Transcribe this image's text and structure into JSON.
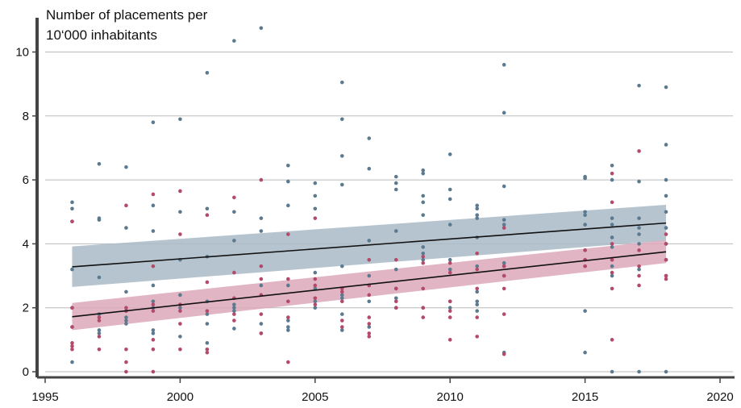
{
  "chart_data": {
    "type": "scatter",
    "title": "",
    "ylabel_lines": [
      "Number of placements per",
      "10‘000 inhabitants"
    ],
    "xlabel": "",
    "xlim": [
      1995,
      2020
    ],
    "ylim": [
      0,
      10.8
    ],
    "x_ticks": [
      1995,
      2000,
      2005,
      2010,
      2015,
      2020
    ],
    "y_ticks": [
      0,
      2,
      4,
      6,
      8,
      10
    ],
    "grid": "horizontal",
    "colors": {
      "blue_points": "#5b7a8f",
      "red_points": "#b44a6a",
      "blue_band": "#a9bac8",
      "red_band": "#dca8b8",
      "fit_line": "#111111",
      "grid": "#bbbbbb",
      "axis": "#444444"
    },
    "series": [
      {
        "color": "#5b7a8f",
        "points": [
          [
            1996,
            5.3
          ],
          [
            1996,
            5.1
          ],
          [
            1996,
            4.7
          ],
          [
            1996,
            3.2
          ],
          [
            1996,
            2.0
          ],
          [
            1996,
            1.4
          ],
          [
            1996,
            0.3
          ],
          [
            1997,
            6.5
          ],
          [
            1997,
            4.8
          ],
          [
            1997,
            4.75
          ],
          [
            1997,
            2.95
          ],
          [
            1997,
            1.8
          ],
          [
            1997,
            1.3
          ],
          [
            1997,
            1.2
          ],
          [
            1998,
            6.4
          ],
          [
            1998,
            4.5
          ],
          [
            1998,
            2.5
          ],
          [
            1998,
            1.9
          ],
          [
            1998,
            1.7
          ],
          [
            1998,
            1.6
          ],
          [
            1998,
            1.5
          ],
          [
            1999,
            7.8
          ],
          [
            1999,
            5.2
          ],
          [
            1999,
            4.4
          ],
          [
            1999,
            2.7
          ],
          [
            1999,
            2.2
          ],
          [
            1999,
            2.0
          ],
          [
            1999,
            1.3
          ],
          [
            1999,
            1.2
          ],
          [
            2000,
            7.9
          ],
          [
            2000,
            5.0
          ],
          [
            2000,
            3.5
          ],
          [
            2000,
            2.4
          ],
          [
            2000,
            2.0
          ],
          [
            2000,
            1.1
          ],
          [
            2001,
            9.35
          ],
          [
            2001,
            5.1
          ],
          [
            2001,
            3.6
          ],
          [
            2001,
            2.2
          ],
          [
            2001,
            1.8
          ],
          [
            2001,
            1.5
          ],
          [
            2001,
            0.9
          ],
          [
            2002,
            10.35
          ],
          [
            2002,
            5.0
          ],
          [
            2002,
            4.1
          ],
          [
            2002,
            2.1
          ],
          [
            2002,
            2.0
          ],
          [
            2002,
            1.9
          ],
          [
            2002,
            1.35
          ],
          [
            2003,
            10.75
          ],
          [
            2003,
            4.8
          ],
          [
            2003,
            4.4
          ],
          [
            2003,
            2.7
          ],
          [
            2003,
            1.5
          ],
          [
            2003,
            1.2
          ],
          [
            2004,
            6.45
          ],
          [
            2004,
            5.95
          ],
          [
            2004,
            5.2
          ],
          [
            2004,
            2.7
          ],
          [
            2004,
            1.6
          ],
          [
            2004,
            1.4
          ],
          [
            2004,
            1.3
          ],
          [
            2005,
            5.9
          ],
          [
            2005,
            5.5
          ],
          [
            2005,
            5.1
          ],
          [
            2005,
            3.1
          ],
          [
            2005,
            2.6
          ],
          [
            2005,
            2.2
          ],
          [
            2005,
            2.0
          ],
          [
            2006,
            9.05
          ],
          [
            2006,
            7.9
          ],
          [
            2006,
            6.75
          ],
          [
            2006,
            5.85
          ],
          [
            2006,
            3.3
          ],
          [
            2006,
            2.4
          ],
          [
            2006,
            2.3
          ],
          [
            2006,
            1.8
          ],
          [
            2006,
            1.3
          ],
          [
            2007,
            7.3
          ],
          [
            2007,
            6.35
          ],
          [
            2007,
            4.1
          ],
          [
            2007,
            3.0
          ],
          [
            2007,
            2.7
          ],
          [
            2007,
            2.2
          ],
          [
            2007,
            1.4
          ],
          [
            2008,
            6.1
          ],
          [
            2008,
            5.9
          ],
          [
            2008,
            5.7
          ],
          [
            2008,
            4.4
          ],
          [
            2008,
            3.2
          ],
          [
            2008,
            2.6
          ],
          [
            2008,
            2.3
          ],
          [
            2008,
            2.0
          ],
          [
            2009,
            6.3
          ],
          [
            2009,
            6.2
          ],
          [
            2009,
            5.5
          ],
          [
            2009,
            5.3
          ],
          [
            2009,
            4.9
          ],
          [
            2009,
            3.9
          ],
          [
            2009,
            3.7
          ],
          [
            2009,
            3.5
          ],
          [
            2009,
            2.0
          ],
          [
            2010,
            6.8
          ],
          [
            2010,
            5.7
          ],
          [
            2010,
            5.4
          ],
          [
            2010,
            4.6
          ],
          [
            2010,
            3.5
          ],
          [
            2010,
            3.2
          ],
          [
            2010,
            2.2
          ],
          [
            2010,
            2.0
          ],
          [
            2011,
            5.2
          ],
          [
            2011,
            5.1
          ],
          [
            2011,
            4.9
          ],
          [
            2011,
            4.8
          ],
          [
            2011,
            4.2
          ],
          [
            2011,
            3.3
          ],
          [
            2011,
            2.5
          ],
          [
            2011,
            2.2
          ],
          [
            2011,
            2.1
          ],
          [
            2011,
            1.9
          ],
          [
            2012,
            9.6
          ],
          [
            2012,
            8.1
          ],
          [
            2012,
            5.8
          ],
          [
            2012,
            4.75
          ],
          [
            2012,
            4.6
          ],
          [
            2012,
            3.4
          ],
          [
            2012,
            3.3
          ],
          [
            2012,
            3.0
          ],
          [
            2012,
            0.6
          ],
          [
            2015,
            6.1
          ],
          [
            2015,
            6.05
          ],
          [
            2015,
            5.0
          ],
          [
            2015,
            4.9
          ],
          [
            2015,
            4.6
          ],
          [
            2015,
            3.8
          ],
          [
            2015,
            3.5
          ],
          [
            2015,
            3.3
          ],
          [
            2015,
            1.9
          ],
          [
            2015,
            0.6
          ],
          [
            2016,
            6.45
          ],
          [
            2016,
            6.0
          ],
          [
            2016,
            4.8
          ],
          [
            2016,
            4.6
          ],
          [
            2016,
            4.2
          ],
          [
            2016,
            3.9
          ],
          [
            2016,
            3.3
          ],
          [
            2016,
            3.0
          ],
          [
            2016,
            0.0
          ],
          [
            2017,
            8.95
          ],
          [
            2017,
            5.95
          ],
          [
            2017,
            4.8
          ],
          [
            2017,
            4.5
          ],
          [
            2017,
            4.3
          ],
          [
            2017,
            4.0
          ],
          [
            2017,
            3.2
          ],
          [
            2017,
            0.0
          ],
          [
            2018,
            8.9
          ],
          [
            2018,
            7.1
          ],
          [
            2018,
            6.0
          ],
          [
            2018,
            5.5
          ],
          [
            2018,
            5.0
          ],
          [
            2018,
            4.5
          ],
          [
            2018,
            4.0
          ],
          [
            2018,
            3.5
          ],
          [
            2018,
            3.0
          ],
          [
            2018,
            0.0
          ]
        ]
      },
      {
        "color": "#b44a6a",
        "points": [
          [
            1996,
            4.7
          ],
          [
            1996,
            2.0
          ],
          [
            1996,
            1.4
          ],
          [
            1996,
            0.9
          ],
          [
            1996,
            0.8
          ],
          [
            1996,
            0.7
          ],
          [
            1997,
            1.7
          ],
          [
            1997,
            1.6
          ],
          [
            1997,
            1.1
          ],
          [
            1997,
            0.7
          ],
          [
            1998,
            5.2
          ],
          [
            1998,
            2.0
          ],
          [
            1998,
            1.9
          ],
          [
            1998,
            0.7
          ],
          [
            1998,
            0.3
          ],
          [
            1998,
            0.0
          ],
          [
            1999,
            5.55
          ],
          [
            1999,
            3.3
          ],
          [
            1999,
            2.1
          ],
          [
            1999,
            1.9
          ],
          [
            1999,
            1.0
          ],
          [
            1999,
            0.7
          ],
          [
            1999,
            0.0
          ],
          [
            2000,
            5.65
          ],
          [
            2000,
            4.3
          ],
          [
            2000,
            2.1
          ],
          [
            2000,
            1.9
          ],
          [
            2000,
            1.5
          ],
          [
            2000,
            0.7
          ],
          [
            2001,
            4.9
          ],
          [
            2001,
            2.8
          ],
          [
            2001,
            1.9
          ],
          [
            2001,
            0.7
          ],
          [
            2001,
            0.6
          ],
          [
            2002,
            5.45
          ],
          [
            2002,
            3.1
          ],
          [
            2002,
            2.3
          ],
          [
            2002,
            1.8
          ],
          [
            2002,
            1.6
          ],
          [
            2003,
            6.0
          ],
          [
            2003,
            3.3
          ],
          [
            2003,
            2.9
          ],
          [
            2003,
            2.4
          ],
          [
            2003,
            1.8
          ],
          [
            2003,
            1.2
          ],
          [
            2004,
            4.3
          ],
          [
            2004,
            2.9
          ],
          [
            2004,
            2.2
          ],
          [
            2004,
            1.7
          ],
          [
            2004,
            0.3
          ],
          [
            2005,
            4.8
          ],
          [
            2005,
            2.9
          ],
          [
            2005,
            2.7
          ],
          [
            2005,
            2.3
          ],
          [
            2005,
            2.1
          ],
          [
            2006,
            2.6
          ],
          [
            2006,
            2.5
          ],
          [
            2006,
            2.2
          ],
          [
            2006,
            1.6
          ],
          [
            2006,
            1.4
          ],
          [
            2007,
            3.5
          ],
          [
            2007,
            2.7
          ],
          [
            2007,
            2.4
          ],
          [
            2007,
            1.7
          ],
          [
            2007,
            1.5
          ],
          [
            2007,
            1.2
          ],
          [
            2007,
            1.1
          ],
          [
            2008,
            3.5
          ],
          [
            2008,
            2.6
          ],
          [
            2008,
            2.2
          ],
          [
            2008,
            2.0
          ],
          [
            2009,
            3.6
          ],
          [
            2009,
            3.4
          ],
          [
            2009,
            2.6
          ],
          [
            2009,
            2.0
          ],
          [
            2009,
            1.7
          ],
          [
            2010,
            3.4
          ],
          [
            2010,
            3.1
          ],
          [
            2010,
            2.2
          ],
          [
            2010,
            1.9
          ],
          [
            2010,
            1.7
          ],
          [
            2010,
            1.0
          ],
          [
            2011,
            3.7
          ],
          [
            2011,
            3.2
          ],
          [
            2011,
            2.6
          ],
          [
            2011,
            1.7
          ],
          [
            2011,
            1.1
          ],
          [
            2012,
            4.5
          ],
          [
            2012,
            3.3
          ],
          [
            2012,
            3.0
          ],
          [
            2012,
            2.6
          ],
          [
            2012,
            1.8
          ],
          [
            2012,
            0.55
          ],
          [
            2015,
            3.8
          ],
          [
            2015,
            3.5
          ],
          [
            2015,
            3.3
          ],
          [
            2016,
            6.2
          ],
          [
            2016,
            5.3
          ],
          [
            2016,
            4.0
          ],
          [
            2016,
            3.5
          ],
          [
            2016,
            3.1
          ],
          [
            2016,
            2.6
          ],
          [
            2016,
            1.0
          ],
          [
            2017,
            6.9
          ],
          [
            2017,
            3.8
          ],
          [
            2017,
            3.3
          ],
          [
            2017,
            3.0
          ],
          [
            2017,
            2.7
          ],
          [
            2018,
            4.3
          ],
          [
            2018,
            4.0
          ],
          [
            2018,
            3.5
          ],
          [
            2018,
            3.0
          ],
          [
            2018,
            2.9
          ]
        ]
      }
    ],
    "fits": [
      {
        "color": "#a9bac8",
        "x": [
          1996,
          2018
        ],
        "y": [
          3.28,
          4.65
        ],
        "ci_low": [
          2.65,
          4.1
        ],
        "ci_high": [
          3.92,
          5.22
        ]
      },
      {
        "color": "#dca8b8",
        "x": [
          1996,
          2018
        ],
        "y": [
          1.72,
          3.75
        ],
        "ci_low": [
          1.3,
          3.4
        ],
        "ci_high": [
          2.15,
          4.12
        ]
      }
    ]
  }
}
